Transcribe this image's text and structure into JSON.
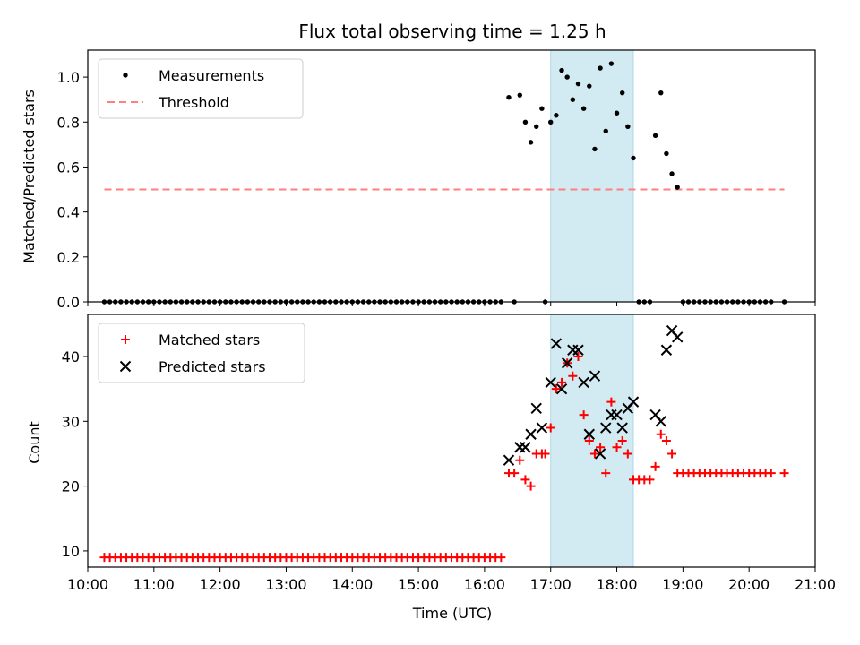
{
  "title": "Flux total observing time = 1.25 h",
  "colors": {
    "measurements": "#000000",
    "threshold": "#ff7f7f",
    "matched": "#ff0000",
    "predicted": "#000000",
    "highlight": "#add8e6"
  },
  "chart_data": [
    {
      "type": "scatter",
      "panel": "top",
      "ylabel": "Matched/Predicted stars",
      "xlabel": "",
      "xlim": [
        "10:00",
        "21:00"
      ],
      "ylim": [
        0,
        1.12
      ],
      "yticks": [
        0.0,
        0.2,
        0.4,
        0.6,
        0.8,
        1.0
      ],
      "ytick_labels": [
        "0.0",
        "0.2",
        "0.4",
        "0.6",
        "0.8",
        "1.0"
      ],
      "highlight_span": [
        "17:00",
        "18:15"
      ],
      "legend": {
        "placement": "top-left",
        "entries": [
          "Measurements",
          "Threshold"
        ]
      },
      "threshold": {
        "name": "Threshold",
        "y": 0.5,
        "x": [
          "10:15",
          "20:32"
        ],
        "style": "dashed"
      },
      "series": [
        {
          "name": "Measurements",
          "marker": "dot",
          "x": [
            "10:15",
            "10:20",
            "10:25",
            "10:30",
            "10:35",
            "10:40",
            "10:45",
            "10:50",
            "10:55",
            "11:00",
            "11:05",
            "11:10",
            "11:15",
            "11:20",
            "11:25",
            "11:30",
            "11:35",
            "11:40",
            "11:45",
            "11:50",
            "11:55",
            "12:00",
            "12:05",
            "12:10",
            "12:15",
            "12:20",
            "12:25",
            "12:30",
            "12:35",
            "12:40",
            "12:45",
            "12:50",
            "12:55",
            "13:00",
            "13:05",
            "13:10",
            "13:15",
            "13:20",
            "13:25",
            "13:30",
            "13:35",
            "13:40",
            "13:45",
            "13:50",
            "13:55",
            "14:00",
            "14:05",
            "14:10",
            "14:15",
            "14:20",
            "14:25",
            "14:30",
            "14:35",
            "14:40",
            "14:45",
            "14:50",
            "14:55",
            "15:00",
            "15:05",
            "15:10",
            "15:15",
            "15:20",
            "15:25",
            "15:30",
            "15:35",
            "15:40",
            "15:45",
            "15:50",
            "15:55",
            "16:00",
            "16:05",
            "16:10",
            "16:15",
            "16:22",
            "16:27",
            "16:32",
            "16:37",
            "16:42",
            "16:47",
            "16:52",
            "16:55",
            "17:00",
            "17:05",
            "17:10",
            "17:15",
            "17:20",
            "17:25",
            "17:30",
            "17:35",
            "17:40",
            "17:45",
            "17:50",
            "17:55",
            "18:00",
            "18:05",
            "18:10",
            "18:15",
            "18:20",
            "18:25",
            "18:30",
            "18:35",
            "18:40",
            "18:45",
            "18:50",
            "18:55",
            "19:00",
            "19:05",
            "19:10",
            "19:15",
            "19:20",
            "19:25",
            "19:30",
            "19:35",
            "19:40",
            "19:45",
            "19:50",
            "19:55",
            "20:00",
            "20:05",
            "20:10",
            "20:15",
            "20:20",
            "20:32"
          ],
          "y": [
            0,
            0,
            0,
            0,
            0,
            0,
            0,
            0,
            0,
            0,
            0,
            0,
            0,
            0,
            0,
            0,
            0,
            0,
            0,
            0,
            0,
            0,
            0,
            0,
            0,
            0,
            0,
            0,
            0,
            0,
            0,
            0,
            0,
            0,
            0,
            0,
            0,
            0,
            0,
            0,
            0,
            0,
            0,
            0,
            0,
            0,
            0,
            0,
            0,
            0,
            0,
            0,
            0,
            0,
            0,
            0,
            0,
            0,
            0,
            0,
            0,
            0,
            0,
            0,
            0,
            0,
            0,
            0,
            0,
            0,
            0,
            0,
            0,
            0.91,
            0,
            0.92,
            0.8,
            0.71,
            0.78,
            0.86,
            0,
            0.8,
            0.83,
            1.03,
            1.0,
            0.9,
            0.97,
            0.86,
            0.96,
            0.68,
            1.04,
            0.76,
            1.06,
            0.84,
            0.93,
            0.78,
            0.64,
            0,
            0,
            0,
            0.74,
            0.93,
            0.66,
            0.57,
            0.51,
            0,
            0,
            0,
            0,
            0,
            0,
            0,
            0,
            0,
            0,
            0,
            0,
            0,
            0,
            0,
            0,
            0,
            0
          ]
        }
      ]
    },
    {
      "type": "scatter",
      "panel": "bottom",
      "ylabel": "Count",
      "xlabel": "Time (UTC)",
      "xlim": [
        "10:00",
        "21:00"
      ],
      "ylim": [
        7.5,
        46.5
      ],
      "yticks": [
        10,
        20,
        30,
        40
      ],
      "ytick_labels": [
        "10",
        "20",
        "30",
        "40"
      ],
      "xticks": [
        "10:00",
        "11:00",
        "12:00",
        "13:00",
        "14:00",
        "15:00",
        "16:00",
        "17:00",
        "18:00",
        "19:00",
        "20:00",
        "21:00"
      ],
      "xtick_labels": [
        "10:00",
        "11:00",
        "12:00",
        "13:00",
        "14:00",
        "15:00",
        "16:00",
        "17:00",
        "18:00",
        "19:00",
        "20:00",
        "21:00"
      ],
      "highlight_span": [
        "17:00",
        "18:15"
      ],
      "legend": {
        "placement": "top-left",
        "entries": [
          "Matched stars",
          "Predicted stars"
        ]
      },
      "series": [
        {
          "name": "Matched stars",
          "marker": "plus",
          "x": [
            "10:15",
            "10:20",
            "10:25",
            "10:30",
            "10:35",
            "10:40",
            "10:45",
            "10:50",
            "10:55",
            "11:00",
            "11:05",
            "11:10",
            "11:15",
            "11:20",
            "11:25",
            "11:30",
            "11:35",
            "11:40",
            "11:45",
            "11:50",
            "11:55",
            "12:00",
            "12:05",
            "12:10",
            "12:15",
            "12:20",
            "12:25",
            "12:30",
            "12:35",
            "12:40",
            "12:45",
            "12:50",
            "12:55",
            "13:00",
            "13:05",
            "13:10",
            "13:15",
            "13:20",
            "13:25",
            "13:30",
            "13:35",
            "13:40",
            "13:45",
            "13:50",
            "13:55",
            "14:00",
            "14:05",
            "14:10",
            "14:15",
            "14:20",
            "14:25",
            "14:30",
            "14:35",
            "14:40",
            "14:45",
            "14:50",
            "14:55",
            "15:00",
            "15:05",
            "15:10",
            "15:15",
            "15:20",
            "15:25",
            "15:30",
            "15:35",
            "15:40",
            "15:45",
            "15:50",
            "15:55",
            "16:00",
            "16:05",
            "16:10",
            "16:15",
            "16:22",
            "16:27",
            "16:32",
            "16:37",
            "16:42",
            "16:47",
            "16:52",
            "16:55",
            "17:00",
            "17:05",
            "17:10",
            "17:15",
            "17:20",
            "17:25",
            "17:30",
            "17:35",
            "17:40",
            "17:45",
            "17:50",
            "17:55",
            "18:00",
            "18:05",
            "18:10",
            "18:15",
            "18:20",
            "18:25",
            "18:30",
            "18:35",
            "18:40",
            "18:45",
            "18:50",
            "18:55",
            "19:00",
            "19:05",
            "19:10",
            "19:15",
            "19:20",
            "19:25",
            "19:30",
            "19:35",
            "19:40",
            "19:45",
            "19:50",
            "19:55",
            "20:00",
            "20:05",
            "20:10",
            "20:15",
            "20:20",
            "20:32"
          ],
          "y": [
            9,
            9,
            9,
            9,
            9,
            9,
            9,
            9,
            9,
            9,
            9,
            9,
            9,
            9,
            9,
            9,
            9,
            9,
            9,
            9,
            9,
            9,
            9,
            9,
            9,
            9,
            9,
            9,
            9,
            9,
            9,
            9,
            9,
            9,
            9,
            9,
            9,
            9,
            9,
            9,
            9,
            9,
            9,
            9,
            9,
            9,
            9,
            9,
            9,
            9,
            9,
            9,
            9,
            9,
            9,
            9,
            9,
            9,
            9,
            9,
            9,
            9,
            9,
            9,
            9,
            9,
            9,
            9,
            9,
            9,
            9,
            9,
            9,
            22,
            22,
            24,
            21,
            20,
            25,
            25,
            25,
            29,
            35,
            36,
            39,
            37,
            40,
            31,
            27,
            25,
            26,
            22,
            33,
            26,
            27,
            25,
            21,
            21,
            21,
            21,
            23,
            28,
            27,
            25,
            22,
            22,
            22,
            22,
            22,
            22,
            22,
            22,
            22,
            22,
            22,
            22,
            22,
            22,
            22,
            22,
            22,
            22,
            22
          ]
        },
        {
          "name": "Predicted stars",
          "marker": "x",
          "x": [
            "16:22",
            "16:32",
            "16:37",
            "16:42",
            "16:47",
            "16:52",
            "17:00",
            "17:05",
            "17:10",
            "17:15",
            "17:20",
            "17:25",
            "17:30",
            "17:35",
            "17:40",
            "17:45",
            "17:50",
            "17:55",
            "18:00",
            "18:05",
            "18:10",
            "18:15",
            "18:35",
            "18:40",
            "18:45",
            "18:50",
            "18:55"
          ],
          "y": [
            24,
            26,
            26,
            28,
            32,
            29,
            36,
            42,
            35,
            39,
            41,
            41,
            36,
            28,
            37,
            25,
            29,
            31,
            31,
            29,
            32,
            33,
            31,
            30,
            41,
            44,
            43
          ]
        }
      ]
    }
  ]
}
